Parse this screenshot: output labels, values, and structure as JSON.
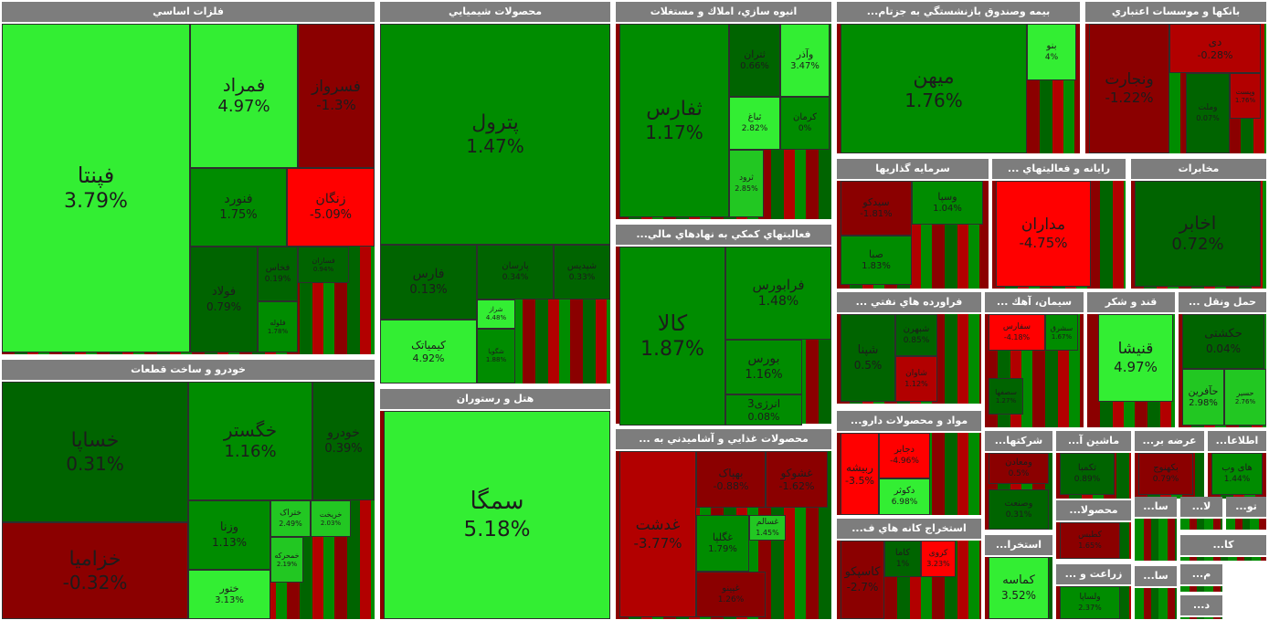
{
  "sections": [
    {
      "name": "فلزات اساسي",
      "tiles": [
        {
          "n": "فپنتا",
          "p": "3.79%"
        },
        {
          "n": "فمراد",
          "p": "4.97%"
        },
        {
          "n": "فسرواز",
          "p": "-1.3%"
        },
        {
          "n": "فنورد",
          "p": "1.75%"
        },
        {
          "n": "زنگان",
          "p": "-5.09%"
        },
        {
          "n": "فولاد",
          "p": "0.79%"
        },
        {
          "n": "فخاس",
          "p": "0.19%"
        },
        {
          "n": "فسازان",
          "p": "0.94%"
        },
        {
          "n": "فلوله",
          "p": "1.78%"
        }
      ]
    },
    {
      "name": "محصولات شيميايي",
      "tiles": [
        {
          "n": "پترول",
          "p": "1.47%"
        },
        {
          "n": "فارس",
          "p": "0.13%"
        },
        {
          "n": "پارسان",
          "p": "0.34%"
        },
        {
          "n": "شپدیس",
          "p": "0.33%"
        },
        {
          "n": "کیمیاتک",
          "p": "4.92%"
        },
        {
          "n": "شراز",
          "p": "4.48%"
        },
        {
          "n": "شگویا",
          "p": "1.88%"
        }
      ]
    },
    {
      "name": "انبوه سازي، املاك و مستغلات",
      "tiles": [
        {
          "n": "ثفارس",
          "p": "1.17%"
        },
        {
          "n": "ثتران",
          "p": "0.66%"
        },
        {
          "n": "وآذر",
          "p": "3.47%"
        },
        {
          "n": "ثباغ",
          "p": "2.82%"
        },
        {
          "n": "کرمان",
          "p": "0%"
        },
        {
          "n": "ثرود",
          "p": "2.85%"
        }
      ]
    },
    {
      "name": "بيمه وصندوق بازنشستگي به جزتام...",
      "tiles": [
        {
          "n": "میهن",
          "p": "1.76%"
        },
        {
          "n": "بنو",
          "p": "4%"
        }
      ]
    },
    {
      "name": "بانكها و موسسات اعتباري",
      "tiles": [
        {
          "n": "ونجارت",
          "p": "-1.22%"
        },
        {
          "n": "دی",
          "p": "-0.28%"
        },
        {
          "n": "وملت",
          "p": "0.07%"
        },
        {
          "n": "وپست",
          "p": "1.76%"
        }
      ]
    },
    {
      "name": "خودرو و ساخت قطعات",
      "tiles": [
        {
          "n": "خساپا",
          "p": "0.31%"
        },
        {
          "n": "خگستر",
          "p": "1.16%"
        },
        {
          "n": "خودرو",
          "p": "0.39%"
        },
        {
          "n": "خزامیا",
          "p": "-0.32%"
        },
        {
          "n": "وزنا",
          "p": "1.13%"
        },
        {
          "n": "ختراک",
          "p": "2.49%"
        },
        {
          "n": "خریخت",
          "p": "2.03%"
        },
        {
          "n": "خمحرکه",
          "p": "2.19%"
        },
        {
          "n": "ختور",
          "p": "3.13%"
        }
      ]
    },
    {
      "name": "هتل و رستوران",
      "tiles": [
        {
          "n": "سمگا",
          "p": "5.18%"
        }
      ]
    },
    {
      "name": "فعاليتهاي كمكي به نهادهاي مالي...",
      "tiles": [
        {
          "n": "کالا",
          "p": "1.87%"
        },
        {
          "n": "فرابورس",
          "p": "1.48%"
        },
        {
          "n": "بورس",
          "p": "1.16%"
        },
        {
          "n": "انرژی3",
          "p": "0.08%"
        }
      ]
    },
    {
      "name": "سرمايه گذاريها",
      "tiles": [
        {
          "n": "سیدکو",
          "p": "-1.81%"
        },
        {
          "n": "وسپا",
          "p": "1.04%"
        },
        {
          "n": "صبا",
          "p": "1.83%"
        }
      ]
    },
    {
      "name": "رايانه و فعاليتهاي ...",
      "tiles": [
        {
          "n": "مداران",
          "p": "-4.75%"
        }
      ]
    },
    {
      "name": "مخابرات",
      "tiles": [
        {
          "n": "اخابر",
          "p": "0.72%"
        }
      ]
    },
    {
      "name": "محصولات غذايي و آشاميدني به ...",
      "tiles": [
        {
          "n": "غدشت",
          "p": "-3.77%"
        },
        {
          "n": "بهپاک",
          "p": "-0.88%"
        },
        {
          "n": "غشوکو",
          "p": "-1.62%"
        },
        {
          "n": "غگلپا",
          "p": "1.79%"
        },
        {
          "n": "غسالم",
          "p": "1.45%"
        },
        {
          "n": "غپینو",
          "p": "1.26%"
        }
      ]
    },
    {
      "name": "فراورده هاي نفتي ...",
      "tiles": [
        {
          "n": "شپنا",
          "p": "0.5%"
        },
        {
          "n": "شبهرن",
          "p": "0.85%"
        },
        {
          "n": "شاوان",
          "p": "1.12%"
        }
      ]
    },
    {
      "name": "سيمان، آهك ...",
      "tiles": [
        {
          "n": "سفارس",
          "p": "-4.18%"
        },
        {
          "n": "سشرق",
          "p": "1.67%"
        },
        {
          "n": "سصفها",
          "p": "1.27%"
        }
      ]
    },
    {
      "name": "قند و شكر",
      "tiles": [
        {
          "n": "قنیشا",
          "p": "4.97%"
        }
      ]
    },
    {
      "name": "حمل ونقل ...",
      "tiles": [
        {
          "n": "حکشتی",
          "p": "0.04%"
        },
        {
          "n": "حآفرین",
          "p": "2.98%"
        },
        {
          "n": "حسیر",
          "p": "2.76%"
        }
      ]
    },
    {
      "name": "مواد و محصولات دارو...",
      "tiles": [
        {
          "n": "ربیشه",
          "p": "-3.5%"
        },
        {
          "n": "دجابر",
          "p": "-4.96%"
        },
        {
          "n": "دکوثر",
          "p": "6.98%"
        }
      ]
    },
    {
      "name": "استخراج كانه هاي ف...",
      "tiles": [
        {
          "n": "کاسپکو",
          "p": "-2.7%"
        },
        {
          "n": "کاما",
          "p": "1%"
        },
        {
          "n": "کروی",
          "p": "3.23%"
        }
      ]
    },
    {
      "name": "شركتها...",
      "tiles": [
        {
          "n": "ومعادن",
          "p": "0.5%"
        },
        {
          "n": "وصنعت",
          "p": "0.31%"
        }
      ]
    },
    {
      "name": "ماشين آ...",
      "tiles": [
        {
          "n": "تکمبا",
          "p": "0.89%"
        }
      ]
    },
    {
      "name": "عرضه بر...",
      "tiles": [
        {
          "n": "بکهنوج",
          "p": "0.79%"
        }
      ]
    },
    {
      "name": "اطلاعا...",
      "tiles": [
        {
          "n": "های وب",
          "p": "1.44%"
        }
      ]
    },
    {
      "name": "استخرا...",
      "tiles": [
        {
          "n": "کماسه",
          "p": "3.52%"
        }
      ]
    },
    {
      "name": "محصولا...",
      "tiles": [
        {
          "n": "کطبس",
          "p": "1.65%"
        }
      ]
    },
    {
      "name": "زراعت و ...",
      "tiles": [
        {
          "n": "ولساپا",
          "p": "2.37%"
        }
      ]
    },
    {
      "name": "سا...",
      "tiles": []
    },
    {
      "name": "سا...",
      "tiles": []
    },
    {
      "name": "لا...",
      "tiles": []
    },
    {
      "name": "تو...",
      "tiles": []
    },
    {
      "name": "کا...",
      "tiles": []
    },
    {
      "name": "م...",
      "tiles": []
    },
    {
      "name": "د...",
      "tiles": []
    }
  ]
}
